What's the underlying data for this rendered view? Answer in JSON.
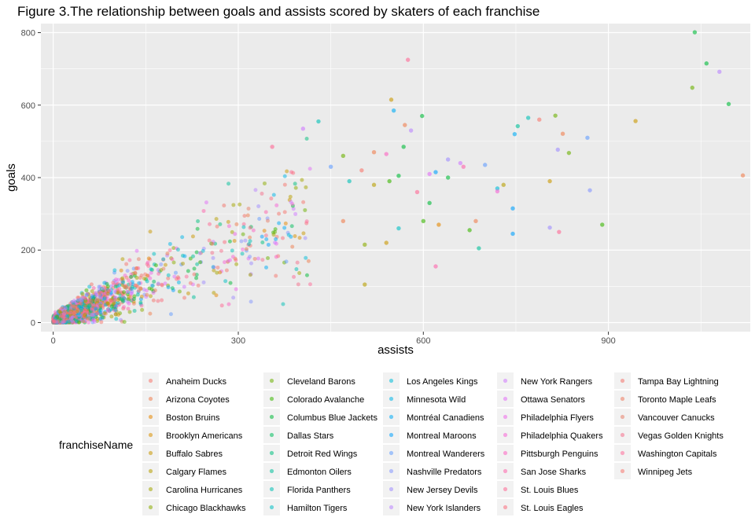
{
  "chart_data": {
    "type": "scatter",
    "title": "Figure 3.The relationship between goals and assists scored by skaters of each franchise",
    "xlabel": "assists",
    "ylabel": "goals",
    "xlim": [
      -20,
      1130
    ],
    "ylim": [
      -25,
      825
    ],
    "x_ticks": [
      0,
      300,
      600,
      900
    ],
    "y_ticks": [
      0,
      200,
      400,
      600,
      800
    ],
    "grid": true,
    "legend": {
      "title": "franchiseName",
      "placement": "bottom",
      "columns": 5,
      "entries": [
        {
          "name": "Anaheim Ducks",
          "color": "#F8766D"
        },
        {
          "name": "Arizona Coyotes",
          "color": "#F07E4E"
        },
        {
          "name": "Boston Bruins",
          "color": "#E58700"
        },
        {
          "name": "Brooklyn Americans",
          "color": "#D89000"
        },
        {
          "name": "Buffalo Sabres",
          "color": "#C99800"
        },
        {
          "name": "Calgary Flames",
          "color": "#B79F00"
        },
        {
          "name": "Carolina Hurricanes",
          "color": "#A3A500"
        },
        {
          "name": "Chicago Blackhawks",
          "color": "#8BAB00"
        },
        {
          "name": "Cleveland Barons",
          "color": "#6BB100"
        },
        {
          "name": "Colorado Avalanche",
          "color": "#39B600"
        },
        {
          "name": "Columbus Blue Jackets",
          "color": "#00BA38"
        },
        {
          "name": "Dallas Stars",
          "color": "#00BD5C"
        },
        {
          "name": "Detroit Red Wings",
          "color": "#00BF7D"
        },
        {
          "name": "Edmonton Oilers",
          "color": "#00C09A"
        },
        {
          "name": "Florida Panthers",
          "color": "#00C0B5"
        },
        {
          "name": "Hamilton Tigers",
          "color": "#00BFC4"
        },
        {
          "name": "Los Angeles Kings",
          "color": "#00BCD8"
        },
        {
          "name": "Minnesota Wild",
          "color": "#00B5E8"
        },
        {
          "name": "Montréal Canadiens",
          "color": "#00ABF5"
        },
        {
          "name": "Montreal Maroons",
          "color": "#00A0FE"
        },
        {
          "name": "Montreal Wanderers",
          "color": "#619CFF"
        },
        {
          "name": "Nashville Predators",
          "color": "#8395FF"
        },
        {
          "name": "New Jersey Devils",
          "color": "#9F8CFF"
        },
        {
          "name": "New York Islanders",
          "color": "#B983FF"
        },
        {
          "name": "New York Rangers",
          "color": "#CF78FF"
        },
        {
          "name": "Ottawa Senators",
          "color": "#E16EF7"
        },
        {
          "name": "Philadelphia Flyers",
          "color": "#EE67EA"
        },
        {
          "name": "Philadelphia Quakers",
          "color": "#F763D6"
        },
        {
          "name": "Pittsburgh Penguins",
          "color": "#FD61C1"
        },
        {
          "name": "San Jose Sharks",
          "color": "#FF62AB"
        },
        {
          "name": "St. Louis Blues",
          "color": "#FF6794"
        },
        {
          "name": "St. Louis Eagles",
          "color": "#FB6E7D"
        },
        {
          "name": "Tampa Bay Lightning",
          "color": "#F4736A"
        },
        {
          "name": "Toronto Maple Leafs",
          "color": "#EE7A5E"
        },
        {
          "name": "Vancouver Canucks",
          "color": "#E87F6A"
        },
        {
          "name": "Vegas Golden Knights",
          "color": "#F66F8C"
        },
        {
          "name": "Washington Capitals",
          "color": "#FF6C99"
        },
        {
          "name": "Winnipeg Jets",
          "color": "#F8766D"
        }
      ]
    },
    "series_points": [
      {
        "assists": 1040,
        "goals": 801,
        "color": "#00BA38"
      },
      {
        "assists": 1059,
        "goals": 715,
        "color": "#00BA38"
      },
      {
        "assists": 1080,
        "goals": 692,
        "color": "#B983FF"
      },
      {
        "assists": 1036,
        "goals": 648,
        "color": "#6BB100"
      },
      {
        "assists": 1095,
        "goals": 603,
        "color": "#00BA38"
      },
      {
        "assists": 1118,
        "goals": 406,
        "color": "#F07E4E"
      },
      {
        "assists": 944,
        "goals": 556,
        "color": "#C99800"
      },
      {
        "assists": 788,
        "goals": 560,
        "color": "#F8766D"
      },
      {
        "assists": 814,
        "goals": 571,
        "color": "#6BB100"
      },
      {
        "assists": 826,
        "goals": 521,
        "color": "#F07E4E"
      },
      {
        "assists": 770,
        "goals": 565,
        "color": "#00C0B5"
      },
      {
        "assists": 753,
        "goals": 542,
        "color": "#00C09A"
      },
      {
        "assists": 748,
        "goals": 520,
        "color": "#00ABF5"
      },
      {
        "assists": 866,
        "goals": 510,
        "color": "#619CFF"
      },
      {
        "assists": 836,
        "goals": 468,
        "color": "#6BB100"
      },
      {
        "assists": 818,
        "goals": 477,
        "color": "#9F8CFF"
      },
      {
        "assists": 890,
        "goals": 270,
        "color": "#39B600"
      },
      {
        "assists": 575,
        "goals": 725,
        "color": "#FF6794"
      },
      {
        "assists": 548,
        "goals": 615,
        "color": "#C99800"
      },
      {
        "assists": 552,
        "goals": 585,
        "color": "#00ABF5"
      },
      {
        "assists": 598,
        "goals": 570,
        "color": "#00BA38"
      },
      {
        "assists": 570,
        "goals": 545,
        "color": "#F07E4E"
      },
      {
        "assists": 580,
        "goals": 530,
        "color": "#B983FF"
      },
      {
        "assists": 568,
        "goals": 485,
        "color": "#00BA38"
      },
      {
        "assists": 430,
        "goals": 555,
        "color": "#00C0B5"
      },
      {
        "assists": 405,
        "goals": 535,
        "color": "#CF78FF"
      },
      {
        "assists": 355,
        "goals": 485,
        "color": "#FF6794"
      },
      {
        "assists": 640,
        "goals": 450,
        "color": "#9F8CFF"
      },
      {
        "assists": 620,
        "goals": 415,
        "color": "#00A0FE"
      },
      {
        "assists": 660,
        "goals": 440,
        "color": "#CF78FF"
      },
      {
        "assists": 700,
        "goals": 435,
        "color": "#619CFF"
      },
      {
        "assists": 730,
        "goals": 380,
        "color": "#B79F00"
      },
      {
        "assists": 805,
        "goals": 390,
        "color": "#C99800"
      },
      {
        "assists": 720,
        "goals": 370,
        "color": "#00BCD8"
      },
      {
        "assists": 720,
        "goals": 362,
        "color": "#F763D6"
      },
      {
        "assists": 870,
        "goals": 365,
        "color": "#8395FF"
      },
      {
        "assists": 745,
        "goals": 315,
        "color": "#00A0FE"
      },
      {
        "assists": 805,
        "goals": 262,
        "color": "#9F8CFF"
      },
      {
        "assists": 820,
        "goals": 250,
        "color": "#FF6794"
      },
      {
        "assists": 745,
        "goals": 245,
        "color": "#00A0FE"
      },
      {
        "assists": 685,
        "goals": 280,
        "color": "#F07E4E"
      },
      {
        "assists": 690,
        "goals": 205,
        "color": "#00C09A"
      },
      {
        "assists": 620,
        "goals": 155,
        "color": "#FF62AB"
      },
      {
        "assists": 505,
        "goals": 105,
        "color": "#B79F00"
      },
      {
        "assists": 625,
        "goals": 270,
        "color": "#E58700"
      },
      {
        "assists": 600,
        "goals": 280,
        "color": "#39B600"
      },
      {
        "assists": 610,
        "goals": 330,
        "color": "#00BA38"
      },
      {
        "assists": 640,
        "goals": 400,
        "color": "#00BA38"
      },
      {
        "assists": 500,
        "goals": 420,
        "color": "#F8766D"
      },
      {
        "assists": 470,
        "goals": 460,
        "color": "#6BB100"
      },
      {
        "assists": 520,
        "goals": 470,
        "color": "#F07E4E"
      },
      {
        "assists": 540,
        "goals": 465,
        "color": "#FD61C1"
      },
      {
        "assists": 450,
        "goals": 430,
        "color": "#619CFF"
      },
      {
        "assists": 520,
        "goals": 380,
        "color": "#B79F00"
      },
      {
        "assists": 545,
        "goals": 390,
        "color": "#39B600"
      },
      {
        "assists": 560,
        "goals": 405,
        "color": "#00BA38"
      },
      {
        "assists": 480,
        "goals": 390,
        "color": "#00C0B5"
      },
      {
        "assists": 505,
        "goals": 215,
        "color": "#8BAB00"
      },
      {
        "assists": 540,
        "goals": 220,
        "color": "#C99800"
      },
      {
        "assists": 560,
        "goals": 260,
        "color": "#00BFC4"
      },
      {
        "assists": 470,
        "goals": 280,
        "color": "#F07E4E"
      },
      {
        "assists": 610,
        "goals": 410,
        "color": "#E16EF7"
      },
      {
        "assists": 665,
        "goals": 430,
        "color": "#FF62AB"
      },
      {
        "assists": 590,
        "goals": 360,
        "color": "#FF6794"
      },
      {
        "assists": 675,
        "goals": 255,
        "color": "#39B600"
      }
    ]
  }
}
